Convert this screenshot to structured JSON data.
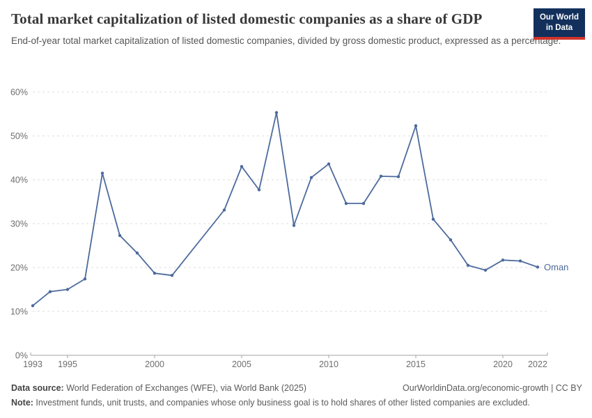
{
  "header": {
    "title": "Total market capitalization of listed domestic companies as a share of GDP",
    "subtitle": "End-of-year total market capitalization of listed domestic companies, divided by gross domestic product, expressed as a percentage.",
    "logo": {
      "line1": "Our World",
      "line2": "in Data"
    }
  },
  "chart_data": {
    "type": "line",
    "title": "Total market capitalization of listed domestic companies as a share of GDP",
    "x": [
      1993,
      1994,
      1995,
      1996,
      1997,
      1998,
      1999,
      2000,
      2001,
      2002,
      2003,
      2004,
      2005,
      2006,
      2007,
      2008,
      2009,
      2010,
      2011,
      2012,
      2013,
      2014,
      2015,
      2016,
      2017,
      2018,
      2019,
      2020,
      2021,
      2022
    ],
    "series": [
      {
        "name": "Oman",
        "color": "#4C6A9C",
        "values": [
          11.3,
          14.5,
          15.0,
          17.4,
          41.5,
          27.3,
          23.3,
          18.7,
          18.2,
          null,
          null,
          33.1,
          43.0,
          37.7,
          55.3,
          29.6,
          40.5,
          43.6,
          34.6,
          34.6,
          40.8,
          40.7,
          52.3,
          31.0,
          26.3,
          20.5,
          19.4,
          21.7,
          21.5,
          20.1
        ]
      }
    ],
    "ylim": [
      0,
      60
    ],
    "yticks": [
      0,
      10,
      20,
      30,
      40,
      50,
      60
    ],
    "ytick_suffix": "%",
    "xtick_labels": [
      1993,
      1995,
      2000,
      2005,
      2010,
      2015,
      2020,
      2022
    ],
    "xtick_marks": [
      1995,
      2000,
      2005,
      2010,
      2015,
      2020
    ],
    "grid": "horizontal-dashed",
    "legend_position": "end-of-line-label"
  },
  "footer": {
    "data_source_label": "Data source:",
    "data_source_text": " World Federation of Exchanges (WFE), via World Bank (2025)",
    "link_text": "OurWorldinData.org/economic-growth | CC BY",
    "note_label": "Note:",
    "note_text": " Investment funds, unit trusts, and companies whose only business goal is to hold shares of other listed companies are excluded."
  },
  "colors": {
    "accent_line": "#4C6A9C",
    "grid": "#dcdcdc",
    "axis": "#a1a1a1",
    "tick_label": "#6e6e6e",
    "title_text": "#383838",
    "logo_bg": "#12305b",
    "logo_red": "#d0342c"
  }
}
